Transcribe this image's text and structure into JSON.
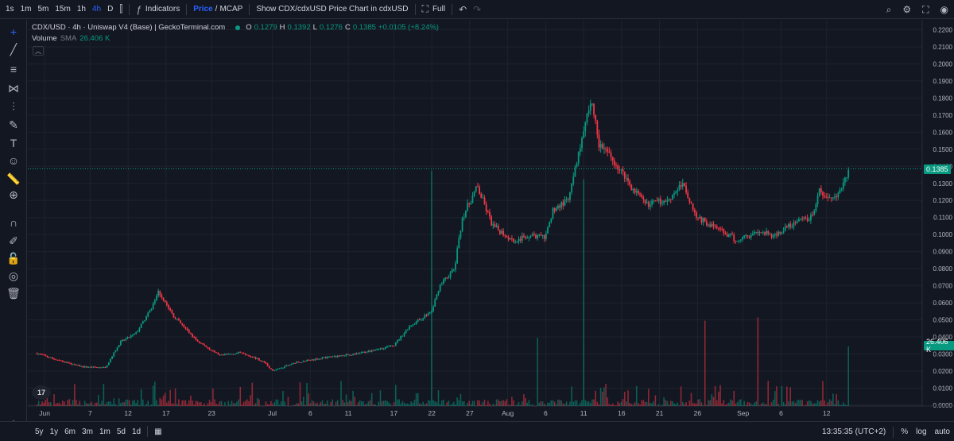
{
  "toolbar": {
    "intervals": [
      "1s",
      "1m",
      "5m",
      "15m",
      "1h",
      "4h",
      "D"
    ],
    "active_interval": "4h",
    "indicators_label": "Indicators",
    "price_label": "Price",
    "price_sep": "/",
    "mcap_label": "MCAP",
    "show_chart_label": "Show CDX/cdxUSD Price Chart in cdxUSD",
    "full_label": "Full"
  },
  "legend": {
    "title": "CDX/USD · 4h · Uniswap V4 (Base) | GeckoTerminal.com",
    "o_label": "O",
    "o_value": "0.1279",
    "h_label": "H",
    "h_value": "0.1392",
    "l_label": "L",
    "l_value": "0.1276",
    "c_label": "C",
    "c_value": "0.1385",
    "change": "+0.0105 (+8.24%)",
    "volume_label": "Volume",
    "volume_sma": "SMA",
    "volume_value": "26.406 K"
  },
  "bottom": {
    "ranges": [
      "5y",
      "1y",
      "6m",
      "3m",
      "1m",
      "5d",
      "1d"
    ],
    "time": "13:35:35 (UTC+2)",
    "percent": "%",
    "log": "log",
    "auto": "auto"
  },
  "colors": {
    "up": "#089981",
    "down": "#f23645",
    "bg": "#131722",
    "grid": "#1e222d",
    "accent": "#2962ff"
  },
  "chart_data": {
    "type": "candlestick",
    "symbol": "CDX/USD",
    "interval": "4h",
    "y_axis": {
      "ticks": [
        "0.2200",
        "0.2100",
        "0.2000",
        "0.1900",
        "0.1800",
        "0.1700",
        "0.1600",
        "0.1500",
        "0.1400",
        "0.1300",
        "0.1200",
        "0.1100",
        "0.1000",
        "0.0900",
        "0.0800",
        "0.0700",
        "0.0600",
        "0.0500",
        "0.0400",
        "0.0300",
        "0.0200",
        "0.0100",
        "-0.0000"
      ],
      "range": [
        -0.0005,
        0.2235
      ]
    },
    "x_axis": {
      "ticks": [
        "Jun",
        "7",
        "12",
        "17",
        "23",
        "Jul",
        "6",
        "11",
        "17",
        "22",
        "27",
        "Aug",
        "6",
        "11",
        "16",
        "21",
        "26",
        "Sep",
        "6",
        "12"
      ]
    },
    "last_price": "0.1385",
    "last_volume": "26.406 K",
    "price_path": [
      {
        "date": "05-31",
        "price": 0.0304
      },
      {
        "date": "06-03",
        "price": 0.026
      },
      {
        "date": "06-06",
        "price": 0.0225
      },
      {
        "date": "06-09",
        "price": 0.022
      },
      {
        "date": "06-11",
        "price": 0.037
      },
      {
        "date": "06-13",
        "price": 0.042
      },
      {
        "date": "06-15",
        "price": 0.056
      },
      {
        "date": "06-16",
        "price": 0.0668
      },
      {
        "date": "06-18",
        "price": 0.052
      },
      {
        "date": "06-21",
        "price": 0.038
      },
      {
        "date": "06-24",
        "price": 0.029
      },
      {
        "date": "06-27",
        "price": 0.031
      },
      {
        "date": "06-30",
        "price": 0.025
      },
      {
        "date": "07-01",
        "price": 0.02
      },
      {
        "date": "07-04",
        "price": 0.025
      },
      {
        "date": "07-08",
        "price": 0.028
      },
      {
        "date": "07-12",
        "price": 0.03
      },
      {
        "date": "07-17",
        "price": 0.035
      },
      {
        "date": "07-19",
        "price": 0.046
      },
      {
        "date": "07-22",
        "price": 0.055
      },
      {
        "date": "07-23",
        "price": 0.07
      },
      {
        "date": "07-25",
        "price": 0.08
      },
      {
        "date": "07-26",
        "price": 0.11
      },
      {
        "date": "07-28",
        "price": 0.128
      },
      {
        "date": "07-30",
        "price": 0.105
      },
      {
        "date": "08-02",
        "price": 0.096
      },
      {
        "date": "08-04",
        "price": 0.1
      },
      {
        "date": "08-06",
        "price": 0.098
      },
      {
        "date": "08-07",
        "price": 0.115
      },
      {
        "date": "08-09",
        "price": 0.12
      },
      {
        "date": "08-10",
        "price": 0.14
      },
      {
        "date": "08-11",
        "price": 0.16
      },
      {
        "date": "08-12",
        "price": 0.18
      },
      {
        "date": "08-13",
        "price": 0.153
      },
      {
        "date": "08-15",
        "price": 0.143
      },
      {
        "date": "08-17",
        "price": 0.13
      },
      {
        "date": "08-19",
        "price": 0.118
      },
      {
        "date": "08-22",
        "price": 0.12
      },
      {
        "date": "08-24",
        "price": 0.13
      },
      {
        "date": "08-26",
        "price": 0.11
      },
      {
        "date": "08-28",
        "price": 0.105
      },
      {
        "date": "08-31",
        "price": 0.097
      },
      {
        "date": "09-03",
        "price": 0.102
      },
      {
        "date": "09-05",
        "price": 0.099
      },
      {
        "date": "09-07",
        "price": 0.105
      },
      {
        "date": "09-10",
        "price": 0.11
      },
      {
        "date": "09-11",
        "price": 0.125
      },
      {
        "date": "09-13",
        "price": 0.12
      },
      {
        "date": "09-15",
        "price": 0.1385
      }
    ],
    "volume_peaks": [
      {
        "date": "07-22",
        "volume": 0.138
      },
      {
        "date": "08-11",
        "volume": 0.133
      },
      {
        "date": "09-03",
        "volume": 0.052
      },
      {
        "date": "08-27",
        "volume": 0.05
      },
      {
        "date": "08-05",
        "volume": 0.04
      },
      {
        "date": "09-15",
        "volume": 0.035
      }
    ]
  }
}
